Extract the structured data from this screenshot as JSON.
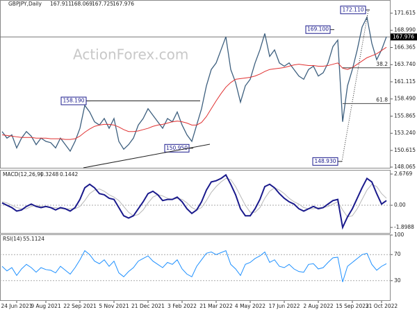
{
  "chart_data": {
    "type": "line",
    "title": "GBPJPY,Daily",
    "ohlc": [
      167.911,
      168.069,
      167.725,
      167.976
    ],
    "watermark": "ActionForex.com",
    "categories": [
      null,
      null,
      null,
      "24 Jun 2021",
      null,
      null,
      null,
      null,
      null,
      "9 Aug 2021",
      null,
      null,
      null,
      null,
      null,
      null,
      "22 Sep 2021",
      null,
      null,
      null,
      null,
      null,
      null,
      "5 Nov 2021",
      null,
      null,
      null,
      null,
      null,
      null,
      "21 Dec 2021",
      null,
      null,
      null,
      null,
      null,
      null,
      "3 Feb 2022",
      null,
      null,
      null,
      null,
      null,
      null,
      "21 Mar 2022",
      null,
      null,
      null,
      null,
      null,
      null,
      "4 May 2022",
      null,
      null,
      null,
      null,
      null,
      null,
      "17 Jun 2022",
      null,
      null,
      null,
      null,
      null,
      null,
      "2 Aug 2022",
      null,
      null,
      null,
      null,
      null,
      null,
      "15 Sep 2022",
      null,
      null,
      null,
      null,
      null,
      "31 Oct 2022",
      null
    ],
    "series": [
      {
        "color": "#3d5f7e",
        "values": [
          153.5,
          152.5,
          153,
          151,
          152.5,
          153.5,
          152.8,
          151.5,
          152.5,
          152,
          151.8,
          151,
          152.5,
          151.5,
          150.5,
          152,
          154,
          157.5,
          156.5,
          155,
          154.5,
          155.5,
          154,
          155.5,
          152,
          150.8,
          151.5,
          152.5,
          154.5,
          155.5,
          157,
          156,
          155,
          154,
          155.5,
          155,
          156.5,
          154.5,
          153,
          152,
          154.5,
          157,
          160.5,
          163,
          164,
          166,
          168,
          163,
          161,
          158,
          160.5,
          161.5,
          164,
          166,
          168.5,
          165,
          166,
          164,
          163.5,
          164,
          163,
          162,
          161.5,
          163,
          163.5,
          162,
          162.5,
          164,
          166.5,
          167.5,
          155,
          160.5,
          163,
          166,
          169.5,
          171,
          167,
          164.5,
          166,
          168
        ]
      },
      {
        "color": "#e03030",
        "values": [
          153,
          152.9,
          152.8,
          152.7,
          152.6,
          152.6,
          152.6,
          152.5,
          152.5,
          152.5,
          152.4,
          152.4,
          152.4,
          152.3,
          152.3,
          152.4,
          152.8,
          153.4,
          153.9,
          154.3,
          154.5,
          154.6,
          154.6,
          154.5,
          154.2,
          153.8,
          153.5,
          153.5,
          153.6,
          153.8,
          154,
          154.3,
          154.5,
          154.6,
          154.8,
          155,
          155.1,
          155,
          154.8,
          154.5,
          154.5,
          154.9,
          155.8,
          157,
          158.2,
          159.3,
          160.3,
          161,
          161.5,
          161.6,
          161.7,
          161.8,
          162,
          162.3,
          162.7,
          163,
          163.1,
          163.2,
          163.3,
          163.5,
          163.7,
          163.8,
          163.7,
          163.6,
          163.6,
          163.5,
          163.5,
          163.6,
          163.8,
          164,
          163.2,
          163,
          163.3,
          163.8,
          164.3,
          164.8,
          165.1,
          165.4,
          165.9,
          166.4
        ]
      }
    ],
    "ylim": [
      147.96,
      173.63
    ],
    "yticks": [
      171.615,
      {
        "value": 168.99,
        "label": "168.990"
      },
      166.365,
      {
        "value": 163.74,
        "label": "163.740"
      },
      161.115,
      {
        "value": 158.49,
        "label": "158.490"
      },
      155.865,
      {
        "value": 153.24,
        "label": "153.240"
      },
      150.615,
      148.065
    ],
    "annotations": [
      {
        "label": "172.110",
        "value": 172.11
      },
      {
        "label": "169.100",
        "value": 169.1
      },
      {
        "label": "158.190",
        "value": 158.19
      },
      {
        "label": "150.950",
        "value": 150.95
      },
      {
        "label": "148.930",
        "value": 148.93
      }
    ],
    "fib_levels": [
      38.2,
      61.8
    ],
    "macd": {
      "label": "MACD(12,26,9)",
      "readout": [
        0.3248,
        0.1442
      ],
      "ylim": [
        -2.374,
        2.974
      ],
      "yticks": [
        2.6769,
        {
          "value": 0,
          "label": "0.00"
        },
        -1.8988
      ],
      "series": [
        {
          "color": "#1a1a8c",
          "values": [
            0.2,
            0,
            -0.2,
            -0.5,
            -0.4,
            -0.1,
            0.1,
            -0.1,
            -0.2,
            -0.1,
            -0.2,
            -0.4,
            -0.2,
            -0.3,
            -0.5,
            -0.2,
            0.5,
            1.5,
            1.8,
            1.5,
            1,
            0.9,
            0.6,
            0.5,
            -0.2,
            -0.9,
            -1.1,
            -0.9,
            -0.3,
            0.3,
            1,
            1.2,
            0.9,
            0.4,
            0.5,
            0.5,
            0.7,
            0.3,
            -0.3,
            -0.7,
            -0.4,
            0.3,
            1.3,
            2,
            2.1,
            2.3,
            2.6,
            1.8,
            0.9,
            -0.3,
            -0.9,
            -0.9,
            -0.3,
            0.5,
            1.6,
            1.8,
            1.5,
            1,
            0.6,
            0.3,
            0.1,
            -0.3,
            -0.5,
            -0.3,
            -0.1,
            -0.3,
            -0.2,
            0.1,
            0.4,
            0.5,
            -1.9,
            -1,
            -0.3,
            0.6,
            1.5,
            2.3,
            2,
            1,
            0.1,
            0.4
          ]
        },
        {
          "color": "#b8b8b8",
          "values": [
            0.3,
            0.2,
            0,
            -0.2,
            -0.3,
            -0.3,
            -0.1,
            0,
            -0.1,
            -0.1,
            -0.2,
            -0.2,
            -0.3,
            -0.3,
            -0.3,
            -0.3,
            -0.1,
            0.4,
            1,
            1.3,
            1.4,
            1.2,
            0.9,
            0.7,
            0.4,
            -0.1,
            -0.6,
            -0.9,
            -0.8,
            -0.4,
            0.2,
            0.7,
            0.9,
            0.8,
            0.6,
            0.5,
            0.6,
            0.5,
            0.2,
            -0.2,
            -0.4,
            -0.2,
            0.4,
            1.1,
            1.6,
            2,
            2.3,
            2.2,
            1.6,
            0.8,
            0,
            -0.6,
            -0.6,
            -0.2,
            0.6,
            1.2,
            1.5,
            1.3,
            1,
            0.6,
            0.3,
            0.1,
            -0.2,
            -0.3,
            -0.3,
            -0.2,
            -0.2,
            -0.1,
            0.1,
            0.3,
            -0.4,
            -1,
            -0.9,
            -0.3,
            0.5,
            1.3,
            1.8,
            1.6,
            1,
            0.6
          ]
        }
      ]
    },
    "rsi": {
      "label": "RSI(14)",
      "readout": 55.1124,
      "ylim": [
        0,
        100
      ],
      "yticks": [
        100,
        70,
        30
      ],
      "color": "#1e90ff",
      "values": [
        52,
        45,
        50,
        38,
        48,
        55,
        50,
        43,
        50,
        47,
        46,
        42,
        52,
        46,
        40,
        50,
        62,
        76,
        70,
        60,
        56,
        62,
        52,
        60,
        42,
        36,
        44,
        50,
        60,
        64,
        68,
        60,
        55,
        50,
        58,
        55,
        62,
        48,
        40,
        36,
        52,
        62,
        72,
        74,
        70,
        73,
        76,
        55,
        48,
        38,
        55,
        58,
        64,
        68,
        74,
        58,
        62,
        52,
        50,
        55,
        48,
        44,
        43,
        55,
        56,
        48,
        50,
        58,
        65,
        66,
        28,
        52,
        58,
        64,
        70,
        72,
        55,
        46,
        52,
        56
      ]
    }
  }
}
